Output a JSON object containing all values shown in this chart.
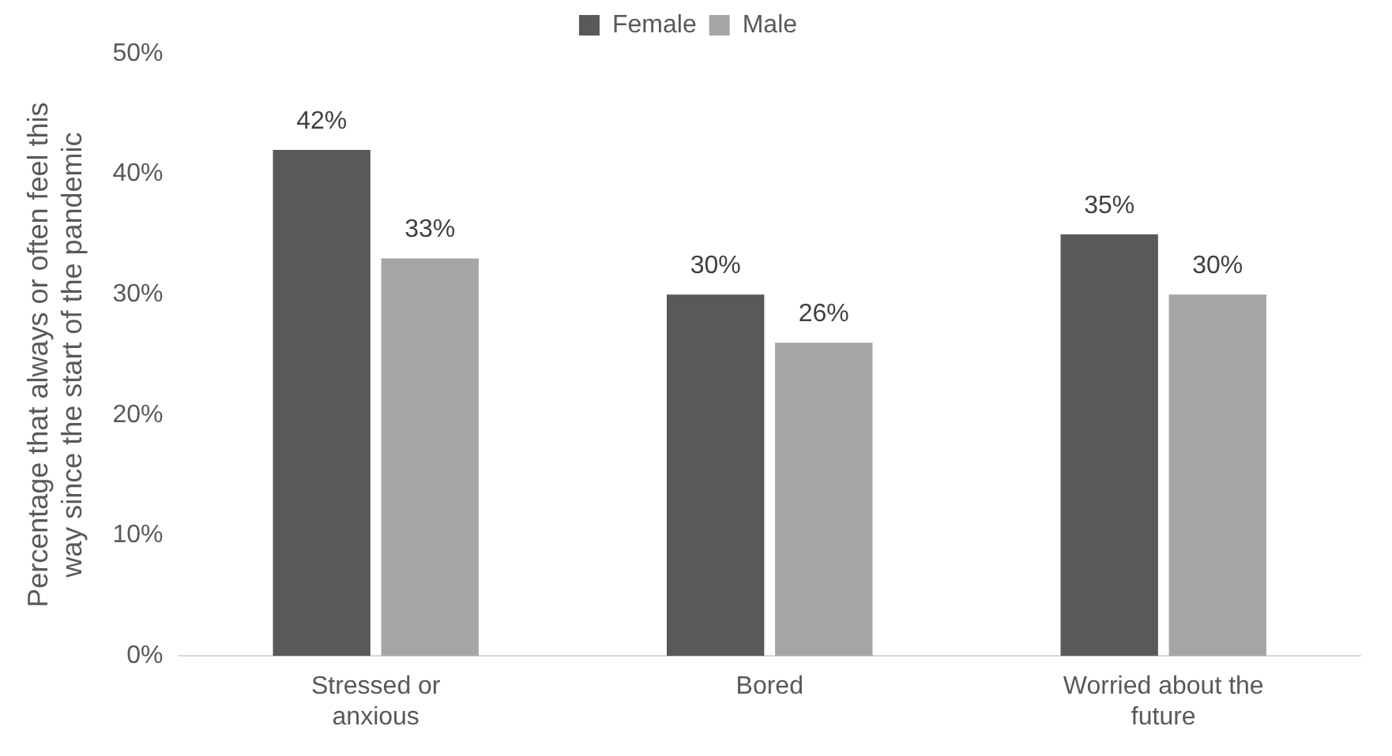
{
  "chart_data": {
    "type": "bar",
    "ylabel": "Percentage that always or often feel this\nway since the start of the pandemic",
    "categories": [
      "Stressed or anxious",
      "Bored",
      "Worried about the future"
    ],
    "series": [
      {
        "name": "Female",
        "color": "#595959",
        "values": [
          42,
          30,
          35
        ],
        "value_labels": [
          "42%",
          "30%",
          "35%"
        ]
      },
      {
        "name": "Male",
        "color": "#a6a6a6",
        "values": [
          33,
          26,
          30
        ],
        "value_labels": [
          "33%",
          "26%",
          "30%"
        ]
      }
    ],
    "ylim": [
      0,
      50
    ],
    "yticks": [
      {
        "value": 0,
        "label": "0%"
      },
      {
        "value": 10,
        "label": "10%"
      },
      {
        "value": 20,
        "label": "20%"
      },
      {
        "value": 30,
        "label": "30%"
      },
      {
        "value": 40,
        "label": "40%"
      },
      {
        "value": 50,
        "label": "50%"
      }
    ],
    "grid": false,
    "legend": "top"
  }
}
